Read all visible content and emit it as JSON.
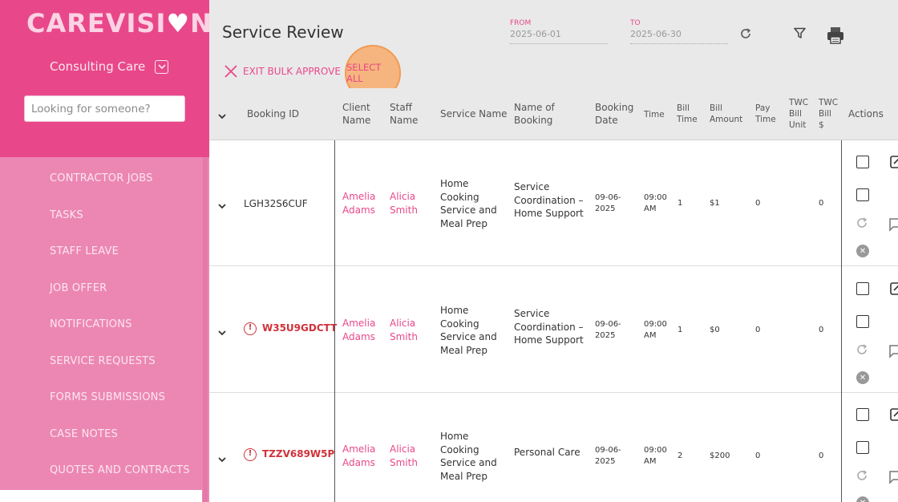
{
  "brand": {
    "logo_left": "CAREVISI",
    "logo_right": "N"
  },
  "org": {
    "name": "Consulting Care"
  },
  "search": {
    "placeholder": "Looking for someone?"
  },
  "sidebar": {
    "items": [
      {
        "label": "CONTRACTOR JOBS"
      },
      {
        "label": "TASKS"
      },
      {
        "label": "STAFF LEAVE"
      },
      {
        "label": "JOB OFFER"
      },
      {
        "label": "NOTIFICATIONS"
      },
      {
        "label": "SERVICE REQUESTS"
      },
      {
        "label": "FORMS SUBMISSIONS"
      },
      {
        "label": "CASE NOTES"
      },
      {
        "label": "QUOTES AND CONTRACTS"
      }
    ]
  },
  "header": {
    "title": "Service Review",
    "from_label": "FROM",
    "from_value": "2025-06-01",
    "to_label": "TO",
    "to_value": "2025-06-30",
    "exit_bulk": "EXIT BULK APPROVE",
    "select_all": "SELECT ALL"
  },
  "table": {
    "columns": {
      "booking_id": "Booking ID",
      "client_1": "Client",
      "client_2": "Name",
      "staff_1": "Staff",
      "staff_2": "Name",
      "service": "Service Name",
      "nob_1": "Name of",
      "nob_2": "Booking",
      "bd_1": "Booking",
      "bd_2": "Date",
      "time": "Time",
      "bt_1": "Bill",
      "bt_2": "Time",
      "ba_1": "Bill",
      "ba_2": "Amount",
      "pt_1": "Pay",
      "pt_2": "Time",
      "twcu_1": "TWC",
      "twcu_2": "Bill",
      "twcu_3": "Unit",
      "twcb_1": "TWC",
      "twcb_2": "Bill",
      "twcb_3": "$",
      "actions": "Actions"
    },
    "rows": [
      {
        "booking_id": "LGH32S6CUF",
        "error": false,
        "client_1": "Amelia",
        "client_2": "Adams",
        "staff_1": "Alicia",
        "staff_2": "Smith",
        "service_1": "Home",
        "service_2": "Cooking",
        "service_3": "Service and",
        "service_4": "Meal Prep",
        "nob_1": "Service",
        "nob_2": "Coordination –",
        "nob_3": "Home Support",
        "date_1": "09-06-",
        "date_2": "2025",
        "time_1": "09:00",
        "time_2": "AM",
        "bill_time": "1",
        "bill_amount": "$1",
        "pay_time": "0",
        "twc_bill": "0"
      },
      {
        "booking_id": "W35U9GDCTT",
        "error": true,
        "client_1": "Amelia",
        "client_2": "Adams",
        "staff_1": "Alicia",
        "staff_2": "Smith",
        "service_1": "Home",
        "service_2": "Cooking",
        "service_3": "Service and",
        "service_4": "Meal Prep",
        "nob_1": "Service",
        "nob_2": "Coordination –",
        "nob_3": "Home Support",
        "date_1": "09-06-",
        "date_2": "2025",
        "time_1": "09:00",
        "time_2": "AM",
        "bill_time": "1",
        "bill_amount": "$0",
        "pay_time": "0",
        "twc_bill": "0"
      },
      {
        "booking_id": "TZZV689W5P",
        "error": true,
        "client_1": "Amelia",
        "client_2": "Adams",
        "staff_1": "Alicia",
        "staff_2": "Smith",
        "service_1": "Home",
        "service_2": "Cooking",
        "service_3": "Service and",
        "service_4": "Meal Prep",
        "nob_1": "Personal Care",
        "nob_2": "",
        "nob_3": "",
        "date_1": "09-06-",
        "date_2": "2025",
        "time_1": "09:00",
        "time_2": "AM",
        "bill_time": "2",
        "bill_amount": "$200",
        "pay_time": "0",
        "twc_bill": "0"
      }
    ]
  },
  "colors": {
    "brand_pink": "#e8488a",
    "sidebar_light": "#ec87b4",
    "error_red": "#d0323a"
  }
}
